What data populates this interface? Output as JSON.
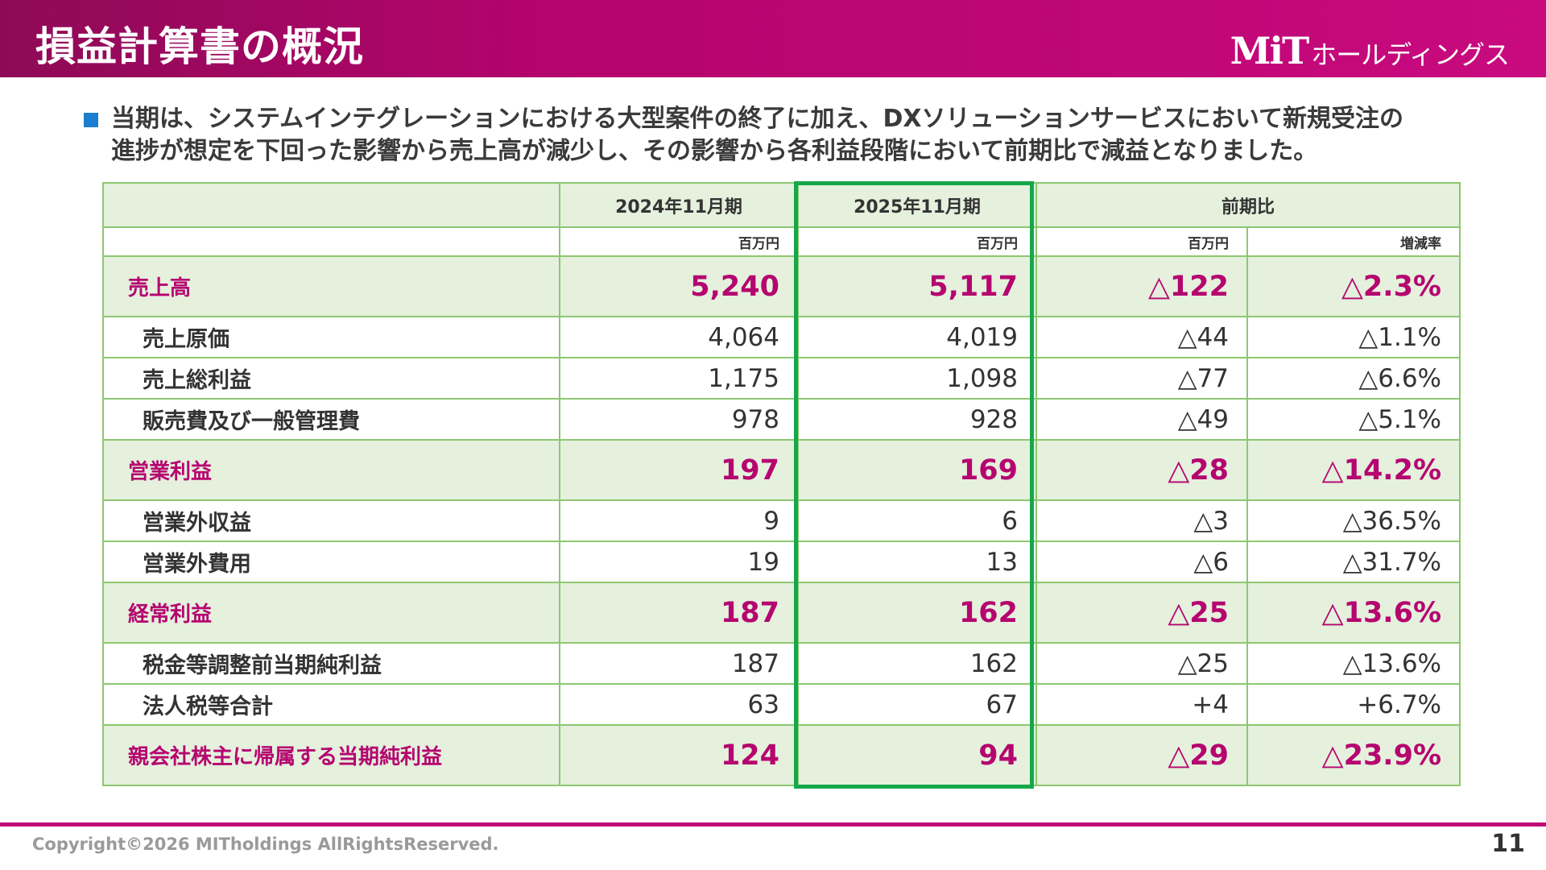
{
  "header": {
    "title": "損益計算書の概況",
    "logo_mark": "MiT",
    "logo_text": "ホールディングス"
  },
  "summary": {
    "line1": "当期は、システムインテグレーションにおける大型案件の終了に加え、DXソリューションサービスにおいて新規受注の",
    "line2": "進捗が想定を下回った影響から売上高が減少し、その影響から各利益段階において前期比で減益となりました。"
  },
  "table": {
    "headers": {
      "prev": "2024年11月期",
      "curr": "2025年11月期",
      "diff": "前期比"
    },
    "units": {
      "prev": "百万円",
      "curr": "百万円",
      "diff": "百万円",
      "rate": "増減率"
    },
    "rows": [
      {
        "label": "売上高",
        "prev": "5,240",
        "curr": "5,117",
        "diff": "△122",
        "rate": "△2.3%",
        "major": true
      },
      {
        "label": "売上原価",
        "prev": "4,064",
        "curr": "4,019",
        "diff": "△44",
        "rate": "△1.1%",
        "major": false
      },
      {
        "label": "売上総利益",
        "prev": "1,175",
        "curr": "1,098",
        "diff": "△77",
        "rate": "△6.6%",
        "major": false
      },
      {
        "label": "販売費及び一般管理費",
        "prev": "978",
        "curr": "928",
        "diff": "△49",
        "rate": "△5.1%",
        "major": false
      },
      {
        "label": "営業利益",
        "prev": "197",
        "curr": "169",
        "diff": "△28",
        "rate": "△14.2%",
        "major": true
      },
      {
        "label": "営業外収益",
        "prev": "9",
        "curr": "6",
        "diff": "△3",
        "rate": "△36.5%",
        "major": false
      },
      {
        "label": "営業外費用",
        "prev": "19",
        "curr": "13",
        "diff": "△6",
        "rate": "△31.7%",
        "major": false
      },
      {
        "label": "経常利益",
        "prev": "187",
        "curr": "162",
        "diff": "△25",
        "rate": "△13.6%",
        "major": true
      },
      {
        "label": "税金等調整前当期純利益",
        "prev": "187",
        "curr": "162",
        "diff": "△25",
        "rate": "△13.6%",
        "major": false
      },
      {
        "label": "法人税等合計",
        "prev": "63",
        "curr": "67",
        "diff": "+4",
        "rate": "+6.7%",
        "major": false
      },
      {
        "label": "親会社株主に帰属する当期純利益",
        "prev": "124",
        "curr": "94",
        "diff": "△29",
        "rate": "△23.9%",
        "major": true
      }
    ]
  },
  "footer": {
    "copyright": "Copyright©2026 MITholdings AllRightsReserved.",
    "page": "11"
  },
  "colors": {
    "header_start": "#8e0a56",
    "header_end": "#c80a7e",
    "accent_magenta": "#b5056f",
    "table_border": "#8cc870",
    "table_fill": "#e5f0dd",
    "highlight_frame": "#14a84b",
    "bullet": "#1a7fd0"
  }
}
